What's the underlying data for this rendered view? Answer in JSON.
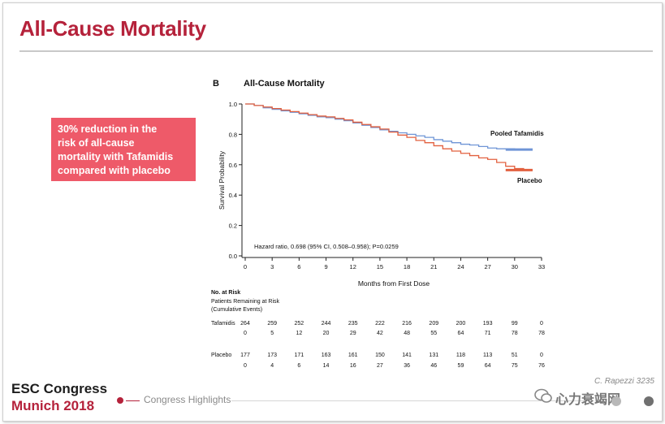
{
  "slide": {
    "title": "All-Cause Mortality",
    "callout_lines": [
      "30% reduction in the",
      "risk of all-cause",
      "mortality with Tafamidis",
      "compared with placebo"
    ],
    "footer_line1": "ESC Congress",
    "footer_line2": "Munich 2018",
    "footer_section": "Congress Highlights",
    "credit": "C. Rapezzi 3235",
    "watermark": "心力衰竭网",
    "accent_color": "#b5223b",
    "callout_color": "#ee5a69"
  },
  "chart_data": {
    "type": "line",
    "panel_label": "B",
    "title": "All-Cause Mortality",
    "xlabel": "Months from First Dose",
    "ylabel": "Survival Probability",
    "xlim": [
      0,
      33
    ],
    "ylim": [
      0,
      1.0
    ],
    "x_ticks": [
      "0",
      "3",
      "6",
      "9",
      "12",
      "15",
      "18",
      "21",
      "24",
      "27",
      "30",
      "33"
    ],
    "y_ticks": [
      "0.0",
      "0.2",
      "0.4",
      "0.6",
      "0.8",
      "1.0"
    ],
    "y_tick_values": [
      0.0,
      0.2,
      0.4,
      0.6,
      0.8,
      1.0
    ],
    "annotation": "Hazard ratio, 0.698 (95% CI, 0.508–0.958); P=0.0259",
    "series": [
      {
        "name": "Pooled Tafamidis",
        "color": "#6f95d6",
        "points": [
          [
            0,
            1.0
          ],
          [
            1,
            0.99
          ],
          [
            2,
            0.975
          ],
          [
            3,
            0.965
          ],
          [
            4,
            0.955
          ],
          [
            5,
            0.945
          ],
          [
            6,
            0.935
          ],
          [
            7,
            0.925
          ],
          [
            8,
            0.915
          ],
          [
            9,
            0.91
          ],
          [
            10,
            0.9
          ],
          [
            11,
            0.89
          ],
          [
            12,
            0.875
          ],
          [
            13,
            0.86
          ],
          [
            14,
            0.845
          ],
          [
            15,
            0.83
          ],
          [
            16,
            0.82
          ],
          [
            17,
            0.81
          ],
          [
            18,
            0.8
          ],
          [
            19,
            0.79
          ],
          [
            20,
            0.78
          ],
          [
            21,
            0.765
          ],
          [
            22,
            0.755
          ],
          [
            23,
            0.745
          ],
          [
            24,
            0.735
          ],
          [
            25,
            0.73
          ],
          [
            26,
            0.72
          ],
          [
            27,
            0.71
          ],
          [
            28,
            0.705
          ],
          [
            29,
            0.705
          ],
          [
            30,
            0.7
          ],
          [
            31,
            0.7
          ],
          [
            32,
            0.7
          ]
        ]
      },
      {
        "name": "Placebo",
        "color": "#e2603f",
        "points": [
          [
            0,
            1.0
          ],
          [
            1,
            0.99
          ],
          [
            2,
            0.98
          ],
          [
            3,
            0.97
          ],
          [
            4,
            0.96
          ],
          [
            5,
            0.95
          ],
          [
            6,
            0.94
          ],
          [
            7,
            0.93
          ],
          [
            8,
            0.92
          ],
          [
            9,
            0.915
          ],
          [
            10,
            0.905
          ],
          [
            11,
            0.895
          ],
          [
            12,
            0.88
          ],
          [
            13,
            0.865
          ],
          [
            14,
            0.85
          ],
          [
            15,
            0.835
          ],
          [
            16,
            0.815
          ],
          [
            17,
            0.795
          ],
          [
            18,
            0.78
          ],
          [
            19,
            0.76
          ],
          [
            20,
            0.745
          ],
          [
            21,
            0.725
          ],
          [
            22,
            0.705
          ],
          [
            23,
            0.69
          ],
          [
            24,
            0.675
          ],
          [
            25,
            0.66
          ],
          [
            26,
            0.645
          ],
          [
            27,
            0.635
          ],
          [
            28,
            0.615
          ],
          [
            29,
            0.59
          ],
          [
            30,
            0.575
          ],
          [
            31,
            0.565
          ],
          [
            32,
            0.565
          ]
        ]
      }
    ],
    "risk_table": {
      "header": "No. at Risk",
      "subheader_line1": "Patients Remaining at Risk",
      "subheader_line2": "(Cumulative Events)",
      "rows": [
        {
          "label": "Tafamidis",
          "at_risk": [
            "264",
            "259",
            "252",
            "244",
            "235",
            "222",
            "216",
            "209",
            "200",
            "193",
            "99",
            "0"
          ],
          "events": [
            "0",
            "5",
            "12",
            "20",
            "29",
            "42",
            "48",
            "55",
            "64",
            "71",
            "78",
            "78"
          ]
        },
        {
          "label": "Placebo",
          "at_risk": [
            "177",
            "173",
            "171",
            "163",
            "161",
            "150",
            "141",
            "131",
            "118",
            "113",
            "51",
            "0"
          ],
          "events": [
            "0",
            "4",
            "6",
            "14",
            "16",
            "27",
            "36",
            "46",
            "59",
            "64",
            "75",
            "76"
          ]
        }
      ]
    }
  }
}
